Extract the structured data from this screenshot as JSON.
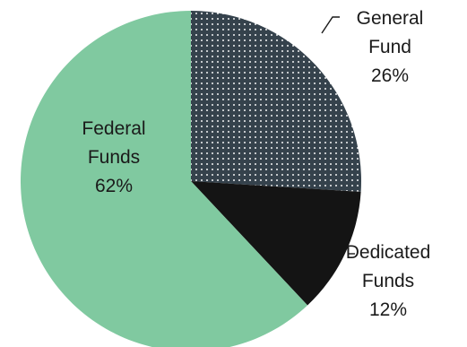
{
  "chart_data": {
    "type": "pie",
    "start": "12 o'clock",
    "direction": "clockwise",
    "slices": [
      {
        "label_lines": [
          "General",
          "Fund",
          "26%"
        ],
        "value": 26,
        "color": "#35424c",
        "pattern": "dotted"
      },
      {
        "label_lines": [
          "Dedicated",
          "Funds",
          "12%"
        ],
        "value": 12,
        "color": "#141414",
        "pattern": "solid"
      },
      {
        "label_lines": [
          "Federal",
          "Funds",
          "62%"
        ],
        "value": 62,
        "color": "#80c9a0",
        "pattern": "solid"
      }
    ]
  }
}
